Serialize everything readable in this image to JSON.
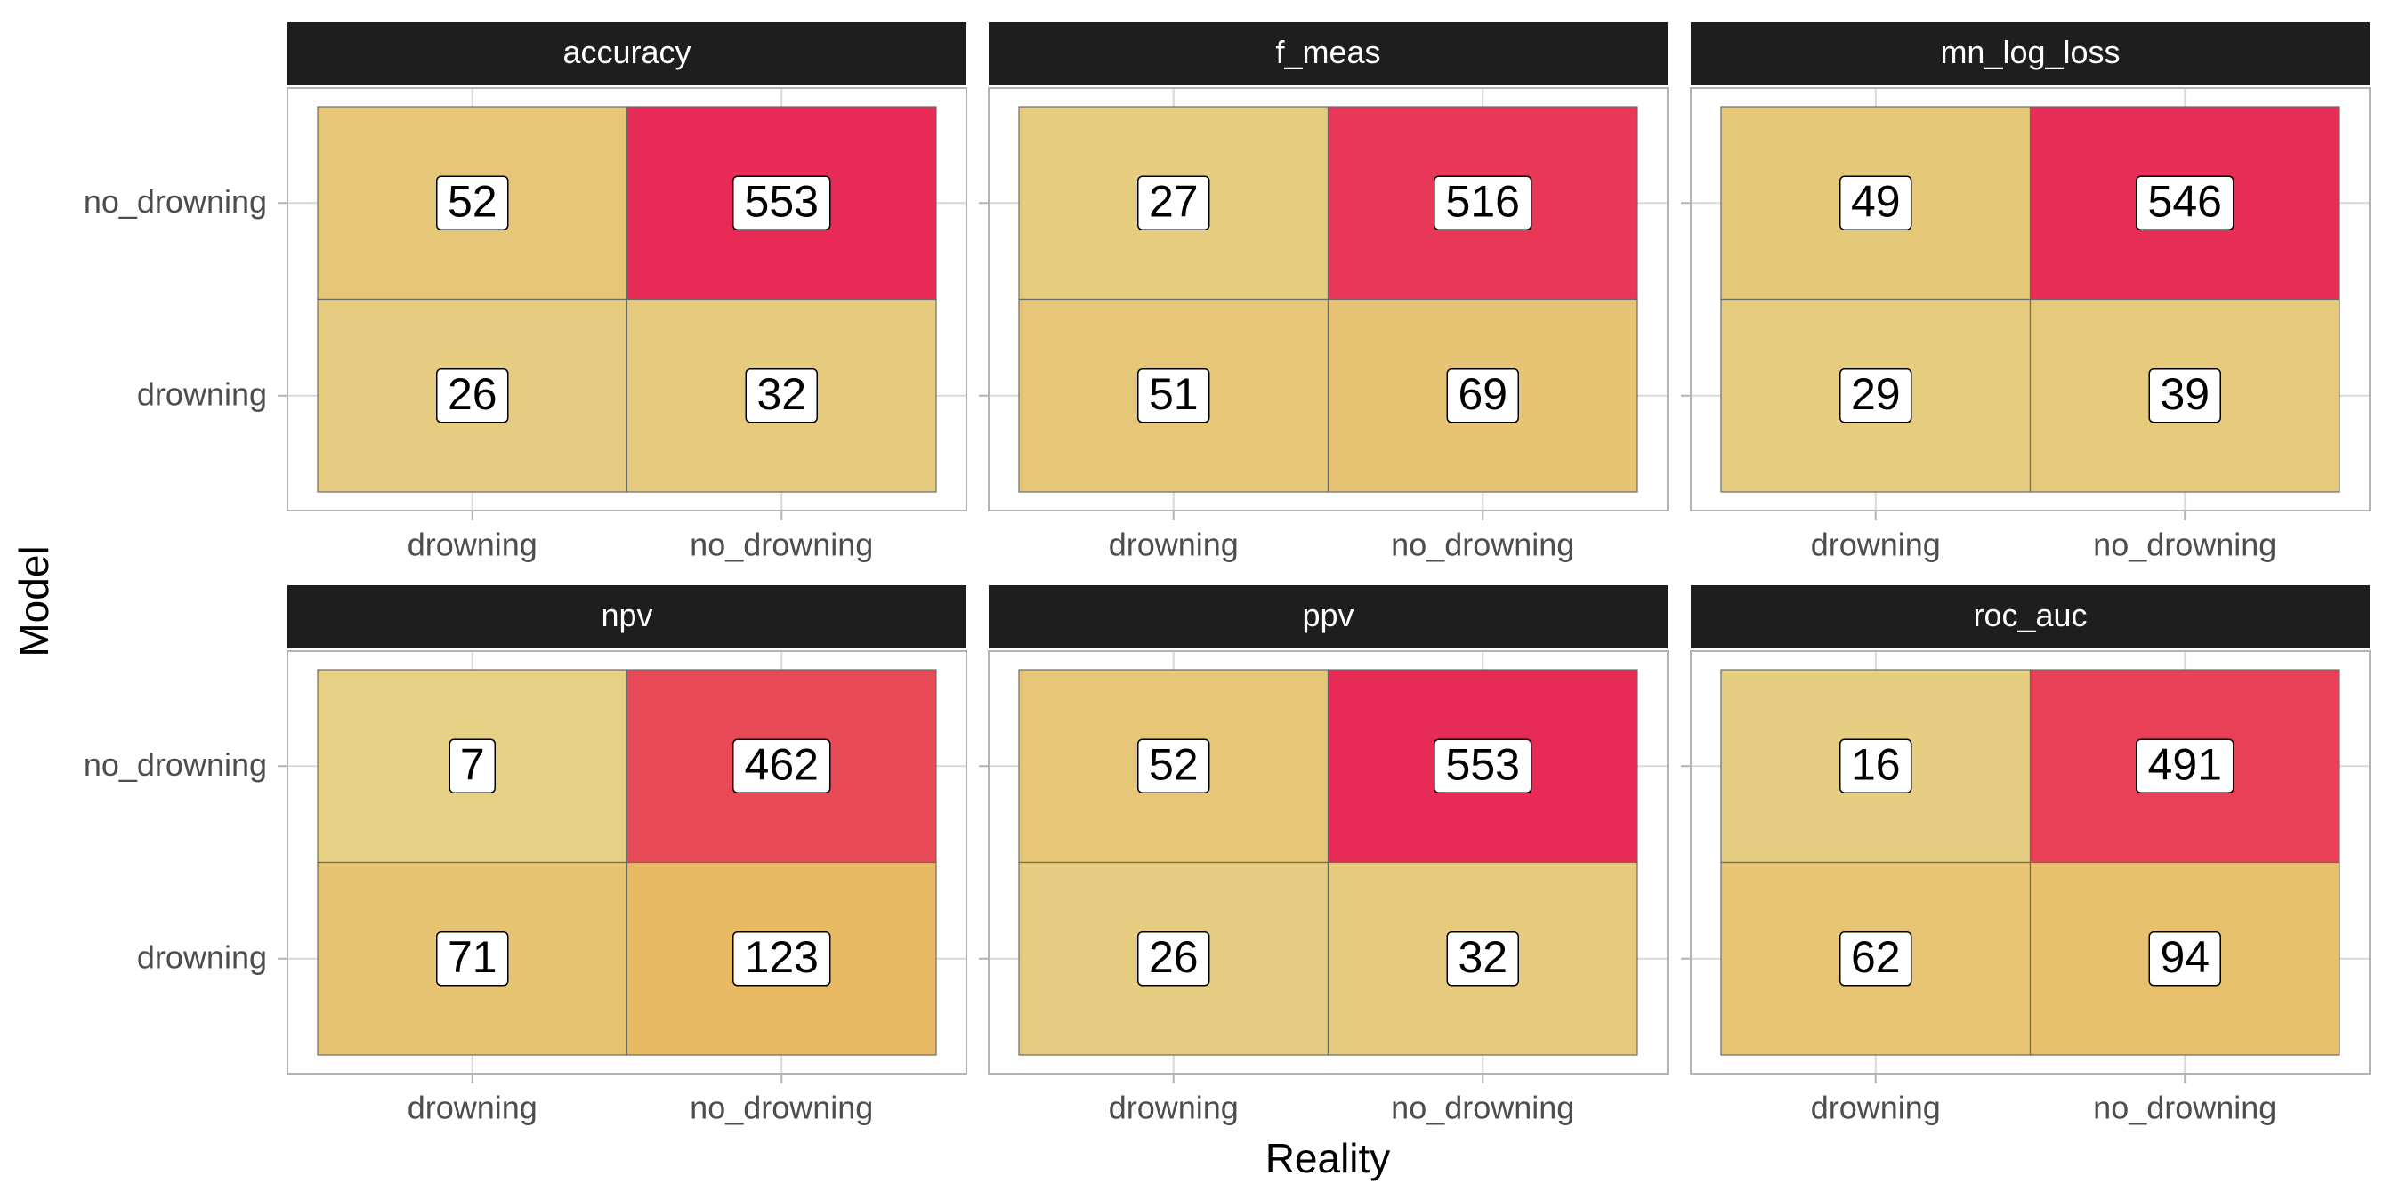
{
  "chart_data": {
    "type": "heatmap",
    "xlabel": "Reality",
    "ylabel": "Model",
    "x_categories": [
      "drowning",
      "no_drowning"
    ],
    "y_categories": [
      "drowning",
      "no_drowning"
    ],
    "color_scale": {
      "low": "#e5d187",
      "mid": "#e9b75f",
      "high": "#e82a56",
      "domain": [
        0,
        555
      ]
    },
    "grid": true,
    "facets": [
      {
        "title": "accuracy",
        "cells": [
          {
            "x": "drowning",
            "y": "no_drowning",
            "value": 52
          },
          {
            "x": "no_drowning",
            "y": "no_drowning",
            "value": 553
          },
          {
            "x": "drowning",
            "y": "drowning",
            "value": 26
          },
          {
            "x": "no_drowning",
            "y": "drowning",
            "value": 32
          }
        ]
      },
      {
        "title": "f_meas",
        "cells": [
          {
            "x": "drowning",
            "y": "no_drowning",
            "value": 27
          },
          {
            "x": "no_drowning",
            "y": "no_drowning",
            "value": 516
          },
          {
            "x": "drowning",
            "y": "drowning",
            "value": 51
          },
          {
            "x": "no_drowning",
            "y": "drowning",
            "value": 69
          }
        ]
      },
      {
        "title": "mn_log_loss",
        "cells": [
          {
            "x": "drowning",
            "y": "no_drowning",
            "value": 49
          },
          {
            "x": "no_drowning",
            "y": "no_drowning",
            "value": 546
          },
          {
            "x": "drowning",
            "y": "drowning",
            "value": 29
          },
          {
            "x": "no_drowning",
            "y": "drowning",
            "value": 39
          }
        ]
      },
      {
        "title": "npv",
        "cells": [
          {
            "x": "drowning",
            "y": "no_drowning",
            "value": 7
          },
          {
            "x": "no_drowning",
            "y": "no_drowning",
            "value": 462
          },
          {
            "x": "drowning",
            "y": "drowning",
            "value": 71
          },
          {
            "x": "no_drowning",
            "y": "drowning",
            "value": 123
          }
        ]
      },
      {
        "title": "ppv",
        "cells": [
          {
            "x": "drowning",
            "y": "no_drowning",
            "value": 52
          },
          {
            "x": "no_drowning",
            "y": "no_drowning",
            "value": 553
          },
          {
            "x": "drowning",
            "y": "drowning",
            "value": 26
          },
          {
            "x": "no_drowning",
            "y": "drowning",
            "value": 32
          }
        ]
      },
      {
        "title": "roc_auc",
        "cells": [
          {
            "x": "drowning",
            "y": "no_drowning",
            "value": 16
          },
          {
            "x": "no_drowning",
            "y": "no_drowning",
            "value": 491
          },
          {
            "x": "drowning",
            "y": "drowning",
            "value": 62
          },
          {
            "x": "no_drowning",
            "y": "drowning",
            "value": 94
          }
        ]
      }
    ]
  }
}
